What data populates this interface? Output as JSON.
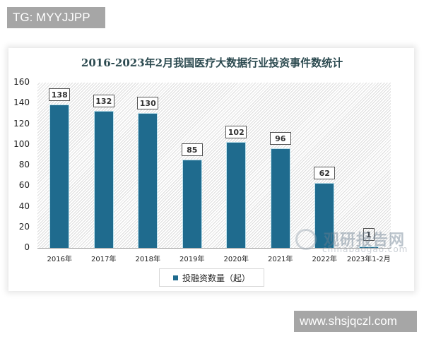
{
  "watermarks": {
    "top_tag": "TG: MYYJJPP",
    "bottom_tag": "www.shsjqczl.com",
    "chart_watermark_cn": "观研报告网",
    "chart_watermark_en": "chinabaogao.com"
  },
  "colors": {
    "bar": "#1f6b8e",
    "title": "#2c4a50",
    "tag_bg": "#a6a6a6"
  },
  "chart_data": {
    "type": "bar",
    "title": "2016-2023年2月我国医疗大数据行业投资事件数统计",
    "xlabel": "",
    "ylabel": "",
    "ylim": [
      0,
      160
    ],
    "yticks": [
      0,
      20,
      40,
      60,
      80,
      100,
      120,
      140,
      160
    ],
    "grid": false,
    "legend_position": "bottom",
    "categories": [
      "2016年",
      "2017年",
      "2018年",
      "2019年",
      "2020年",
      "2021年",
      "2022年",
      "2023年1-2月"
    ],
    "series": [
      {
        "name": "投融资数量（起）",
        "values": [
          138,
          132,
          130,
          85,
          102,
          96,
          62,
          1
        ]
      }
    ]
  },
  "chart": {
    "title": "2016-2023年2月我国医疗大数据行业投资事件数统计",
    "legend_label": "投融资数量（起）",
    "yticks": [
      "160",
      "140",
      "120",
      "100",
      "80",
      "60",
      "40",
      "20",
      "0"
    ],
    "categories": [
      "2016年",
      "2017年",
      "2018年",
      "2019年",
      "2020年",
      "2021年",
      "2022年",
      "2023年1-2月"
    ],
    "value_labels": [
      "138",
      "132",
      "130",
      "85",
      "102",
      "96",
      "62",
      "1"
    ]
  }
}
